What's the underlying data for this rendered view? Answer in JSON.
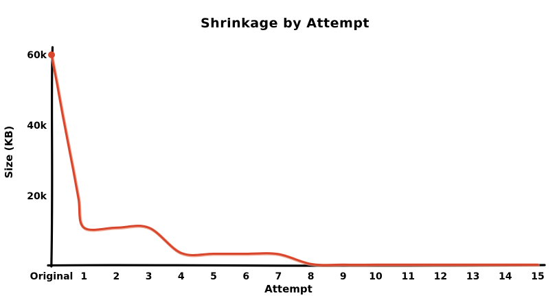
{
  "chart_data": {
    "type": "line",
    "title": "Shrinkage by Attempt",
    "xlabel": "Attempt",
    "ylabel": "Size (KB)",
    "style": "xkcd-hand-drawn",
    "grid": false,
    "legend": "none",
    "x_tick_labels": [
      "Original",
      "1",
      "2",
      "3",
      "4",
      "5",
      "6",
      "7",
      "8",
      "9",
      "10",
      "11",
      "12",
      "13",
      "14",
      "15"
    ],
    "y_tick_labels": [
      {
        "value": 20000,
        "label": "20k"
      },
      {
        "value": 40000,
        "label": "40k"
      },
      {
        "value": 60000,
        "label": "60k"
      }
    ],
    "xlim": [
      0,
      15
    ],
    "ylim": [
      0,
      63000
    ],
    "series": [
      {
        "name": "Size (KB)",
        "x": [
          0,
          1,
          2,
          3,
          4,
          5,
          6,
          7,
          8,
          9,
          10,
          11,
          12,
          13,
          14,
          15
        ],
        "values": [
          60000,
          11000,
          11000,
          11000,
          3800,
          3600,
          3600,
          3500,
          700,
          500,
          500,
          500,
          500,
          500,
          500,
          500
        ],
        "start_marker": "filled-dot"
      }
    ]
  },
  "colors": {
    "line": "#d8462d",
    "line_light": "#eb9378",
    "axis": "#000000",
    "text": "#000000",
    "background": "#ffffff"
  }
}
